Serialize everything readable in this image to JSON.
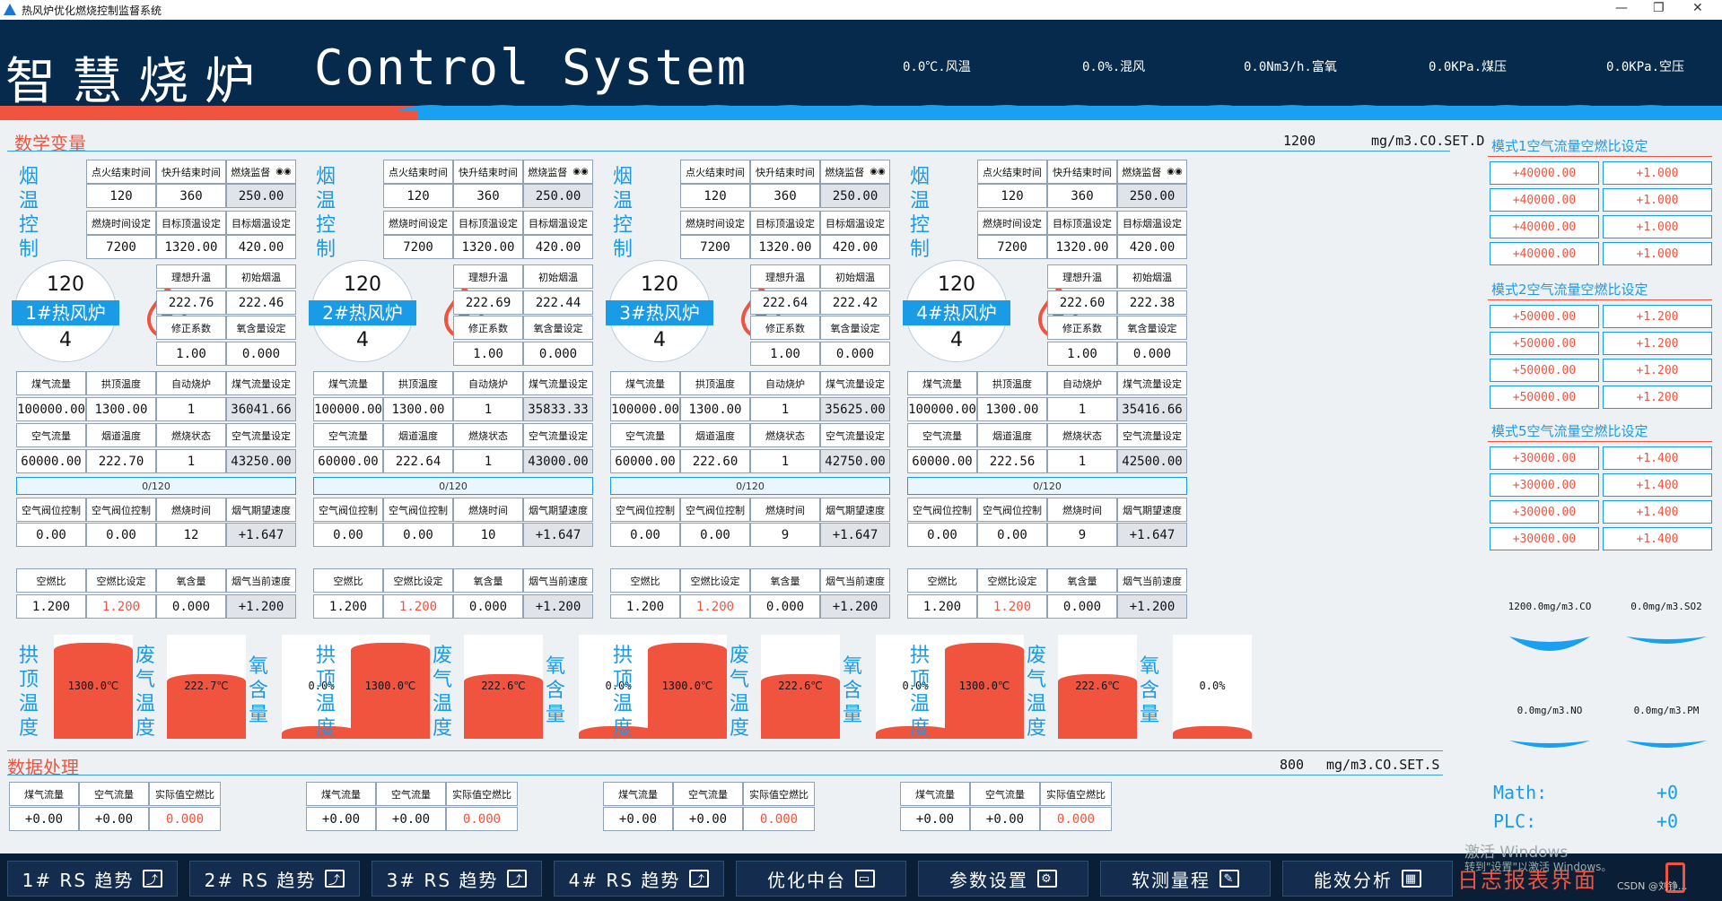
{
  "window": {
    "title": "热风炉优化燃烧控制监督系统",
    "controls": [
      "—",
      "❐",
      "✕"
    ]
  },
  "banner": {
    "title_cn": "智慧烧炉",
    "title_en": "Control System",
    "metrics": [
      "0.0℃.风温",
      "0.0%.混风",
      "0.0Nm3/h.富氧",
      "0.0KPa.煤压",
      "0.0KPa.空压"
    ]
  },
  "section1": {
    "title": "数学变量",
    "setpoint": "1200",
    "unit": "mg/m3.CO.SET.D"
  },
  "section2": {
    "title": "数据处理",
    "setpoint": "800",
    "unit": "mg/m3.CO.SET.S"
  },
  "labels": {
    "smoke_temp_ctrl": "烟温控制",
    "vault_temp": "拱顶温度",
    "waste_gas_temp": "废气温度",
    "oxygen": "氧含量",
    "row1": [
      "点火结束时间",
      "快升结束时间",
      "燃烧监督"
    ],
    "row2": [
      "燃烧时间设定",
      "目标顶温设定",
      "目标烟温设定"
    ],
    "row3": [
      "理想升温",
      "初始烟温"
    ],
    "row4": [
      "修正系数",
      "氧含量设定"
    ],
    "row5": [
      "煤气流量",
      "拱顶温度",
      "自动烧炉",
      "煤气流量设定"
    ],
    "row6": [
      "空气流量",
      "烟道温度",
      "燃烧状态",
      "空气流量设定"
    ],
    "row7": [
      "空气阀位控制",
      "空气阀位控制",
      "燃烧时间",
      "烟气期望速度"
    ],
    "row8": [
      "空燃比",
      "空燃比设定",
      "氧含量",
      "烟气当前速度"
    ],
    "proc": [
      "煤气流量",
      "空气流量",
      "实际值空燃比"
    ]
  },
  "stoves": [
    {
      "name": "1#热风炉",
      "top": "120",
      "bottom": "4",
      "ignite_end": "120",
      "rise_end": "360",
      "monitor": "250.00",
      "burn_time": "7200",
      "target_top": "1320.00",
      "target_smoke": "420.00",
      "ideal_rise": "222.76",
      "init_smoke": "222.46",
      "correction": "1.00",
      "o2_set": "0.000",
      "gas_flow": "100000.00",
      "vault_temp": "1300.00",
      "auto": "1",
      "gas_set": "36041.66",
      "air_flow": "60000.00",
      "flue_temp": "222.70",
      "burn_state": "1",
      "air_set": "43250.00",
      "progress": "0/120",
      "air_valve1": "0.00",
      "air_valve2": "0.00",
      "burn_time2": "12",
      "expect_speed": "+1.647",
      "ratio": "1.200",
      "ratio_set": "1.200",
      "o2": "0.000",
      "cur_speed": "+1.200",
      "tank_vault": "1300.0℃",
      "tank_waste": "222.7℃",
      "tank_o2": "0.0%",
      "tank_vault_level": 0.92,
      "tank_waste_level": 0.62,
      "tank_o2_level": 0.12,
      "p_gas": "+0.00",
      "p_air": "+0.00",
      "p_ratio": "0.000"
    },
    {
      "name": "2#热风炉",
      "top": "120",
      "bottom": "4",
      "ignite_end": "120",
      "rise_end": "360",
      "monitor": "250.00",
      "burn_time": "7200",
      "target_top": "1320.00",
      "target_smoke": "420.00",
      "ideal_rise": "222.69",
      "init_smoke": "222.44",
      "correction": "1.00",
      "o2_set": "0.000",
      "gas_flow": "100000.00",
      "vault_temp": "1300.00",
      "auto": "1",
      "gas_set": "35833.33",
      "air_flow": "60000.00",
      "flue_temp": "222.64",
      "burn_state": "1",
      "air_set": "43000.00",
      "progress": "0/120",
      "air_valve1": "0.00",
      "air_valve2": "0.00",
      "burn_time2": "10",
      "expect_speed": "+1.647",
      "ratio": "1.200",
      "ratio_set": "1.200",
      "o2": "0.000",
      "cur_speed": "+1.200",
      "tank_vault": "1300.0℃",
      "tank_waste": "222.6℃",
      "tank_o2": "0.0%",
      "tank_vault_level": 0.92,
      "tank_waste_level": 0.62,
      "tank_o2_level": 0.12,
      "p_gas": "+0.00",
      "p_air": "+0.00",
      "p_ratio": "0.000"
    },
    {
      "name": "3#热风炉",
      "top": "120",
      "bottom": "4",
      "ignite_end": "120",
      "rise_end": "360",
      "monitor": "250.00",
      "burn_time": "7200",
      "target_top": "1320.00",
      "target_smoke": "420.00",
      "ideal_rise": "222.64",
      "init_smoke": "222.42",
      "correction": "1.00",
      "o2_set": "0.000",
      "gas_flow": "100000.00",
      "vault_temp": "1300.00",
      "auto": "1",
      "gas_set": "35625.00",
      "air_flow": "60000.00",
      "flue_temp": "222.60",
      "burn_state": "1",
      "air_set": "42750.00",
      "progress": "0/120",
      "air_valve1": "0.00",
      "air_valve2": "0.00",
      "burn_time2": "9",
      "expect_speed": "+1.647",
      "ratio": "1.200",
      "ratio_set": "1.200",
      "o2": "0.000",
      "cur_speed": "+1.200",
      "tank_vault": "1300.0℃",
      "tank_waste": "222.6℃",
      "tank_o2": "0.0%",
      "tank_vault_level": 0.92,
      "tank_waste_level": 0.62,
      "tank_o2_level": 0.12,
      "p_gas": "+0.00",
      "p_air": "+0.00",
      "p_ratio": "0.000"
    },
    {
      "name": "4#热风炉",
      "top": "120",
      "bottom": "4",
      "ignite_end": "120",
      "rise_end": "360",
      "monitor": "250.00",
      "burn_time": "7200",
      "target_top": "1320.00",
      "target_smoke": "420.00",
      "ideal_rise": "222.60",
      "init_smoke": "222.38",
      "correction": "1.00",
      "o2_set": "0.000",
      "gas_flow": "100000.00",
      "vault_temp": "1300.00",
      "auto": "1",
      "gas_set": "35416.66",
      "air_flow": "60000.00",
      "flue_temp": "222.56",
      "burn_state": "1",
      "air_set": "42500.00",
      "progress": "0/120",
      "air_valve1": "0.00",
      "air_valve2": "0.00",
      "burn_time2": "9",
      "expect_speed": "+1.647",
      "ratio": "1.200",
      "ratio_set": "1.200",
      "o2": "0.000",
      "cur_speed": "+1.200",
      "tank_vault": "1300.0℃",
      "tank_waste": "222.6℃",
      "tank_o2": "0.0%",
      "tank_vault_level": 0.92,
      "tank_waste_level": 0.62,
      "tank_o2_level": 0.12,
      "p_gas": "+0.00",
      "p_air": "+0.00",
      "p_ratio": "0.000"
    }
  ],
  "right_panel": {
    "modes": [
      {
        "title": "模式1空气流量空燃比设定",
        "rows": [
          [
            "+40000.00",
            "+1.000"
          ],
          [
            "+40000.00",
            "+1.000"
          ],
          [
            "+40000.00",
            "+1.000"
          ],
          [
            "+40000.00",
            "+1.000"
          ]
        ]
      },
      {
        "title": "模式2空气流量空燃比设定",
        "rows": [
          [
            "+50000.00",
            "+1.200"
          ],
          [
            "+50000.00",
            "+1.200"
          ],
          [
            "+50000.00",
            "+1.200"
          ],
          [
            "+50000.00",
            "+1.200"
          ]
        ]
      },
      {
        "title": "模式5空气流量空燃比设定",
        "rows": [
          [
            "+30000.00",
            "+1.400"
          ],
          [
            "+30000.00",
            "+1.400"
          ],
          [
            "+30000.00",
            "+1.400"
          ],
          [
            "+30000.00",
            "+1.400"
          ]
        ]
      }
    ],
    "gauges": [
      "1200.0mg/m3.CO",
      "0.0mg/m3.SO2",
      "0.0mg/m3.NO",
      "0.0mg/m3.PM"
    ],
    "math_label": "Math:",
    "math_value": "+0",
    "plc_label": "PLC:",
    "plc_value": "+0"
  },
  "nav": [
    "1# RS 趋势",
    "2# RS 趋势",
    "3# RS 趋势",
    "4# RS 趋势",
    "优化中台",
    "参数设置",
    "软测量程",
    "能效分析"
  ],
  "log_button": "日志报表界面",
  "watermark": {
    "line1": "激活 Windows",
    "line2": "转到\"设置\"以激活 Windows。",
    "csdn": "CSDN @刘铮..."
  },
  "colors": {
    "accent_red": "#f0533e",
    "accent_blue": "#1aa0f0",
    "navy": "#062a4c"
  }
}
